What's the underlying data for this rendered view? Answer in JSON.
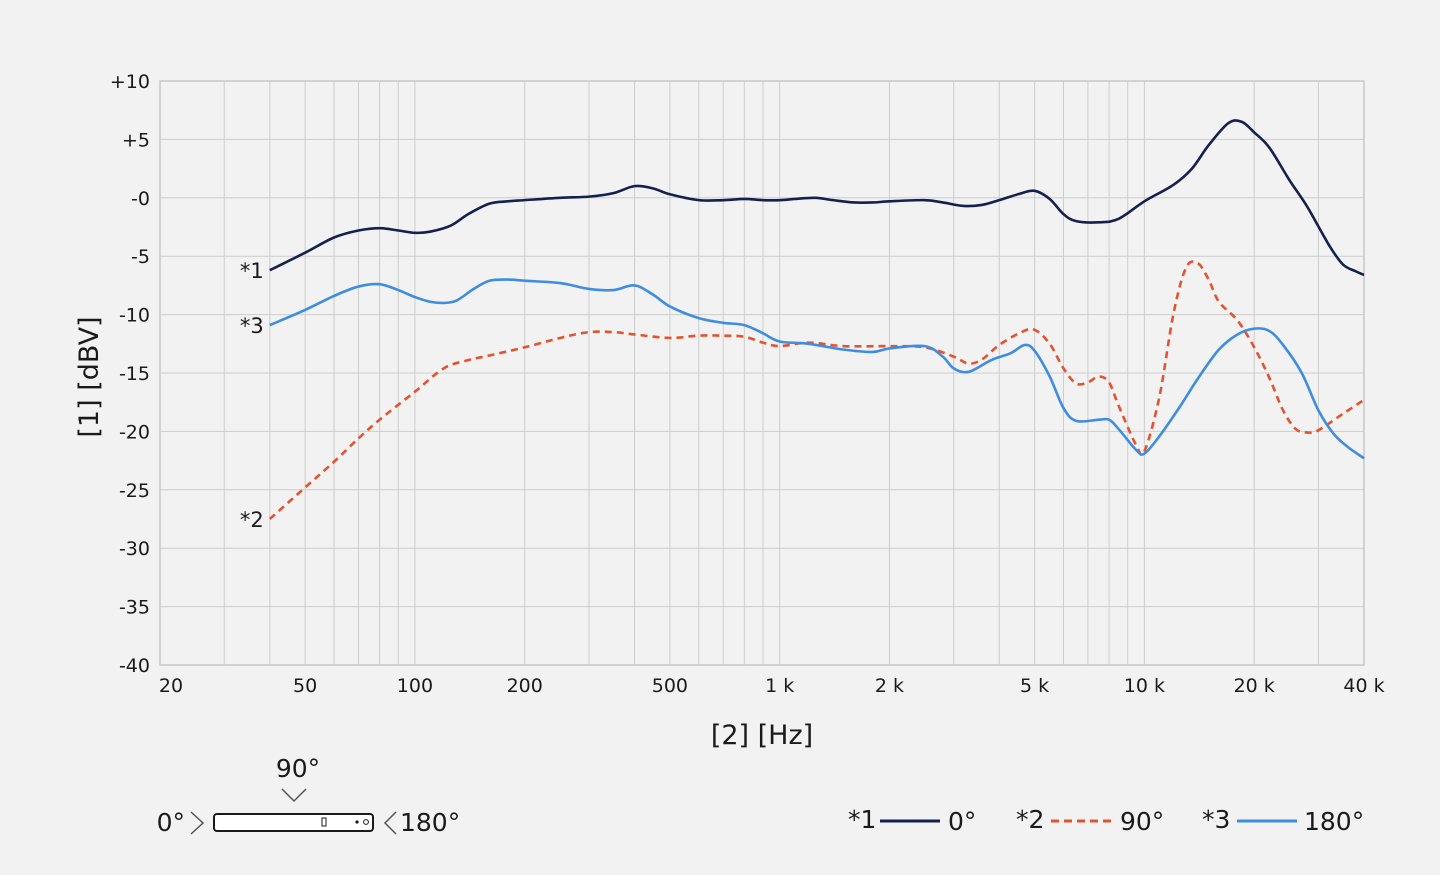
{
  "chart_data": {
    "type": "line",
    "x_scale": "log",
    "ylabel": "[1]  [dBV]",
    "xlabel": "[2]  [Hz]",
    "xlim": [
      20,
      40000
    ],
    "ylim": [
      -40,
      10
    ],
    "grid": true,
    "x_tick_labels": [
      {
        "value": 20,
        "label": "20"
      },
      {
        "value": 50,
        "label": "50"
      },
      {
        "value": 100,
        "label": "100"
      },
      {
        "value": 200,
        "label": "200"
      },
      {
        "value": 500,
        "label": "500"
      },
      {
        "value": 1000,
        "label": "1 k"
      },
      {
        "value": 2000,
        "label": "2 k"
      },
      {
        "value": 5000,
        "label": "5 k"
      },
      {
        "value": 10000,
        "label": "10 k"
      },
      {
        "value": 20000,
        "label": "20 k"
      },
      {
        "value": 40000,
        "label": "40 k"
      }
    ],
    "y_tick_labels": [
      {
        "value": 10,
        "label": "+10"
      },
      {
        "value": 5,
        "label": "+5"
      },
      {
        "value": 0,
        "label": "-0"
      },
      {
        "value": -5,
        "label": "-5"
      },
      {
        "value": -10,
        "label": "-10"
      },
      {
        "value": -15,
        "label": "-15"
      },
      {
        "value": -20,
        "label": "-20"
      },
      {
        "value": -25,
        "label": "-25"
      },
      {
        "value": -30,
        "label": "-30"
      },
      {
        "value": -35,
        "label": "-35"
      },
      {
        "value": -40,
        "label": "-40"
      }
    ],
    "series": [
      {
        "name": "0°",
        "tag": "*1",
        "color": "#14204f",
        "dash": "solid",
        "points": [
          [
            40,
            -6.2
          ],
          [
            50,
            -4.7
          ],
          [
            60,
            -3.4
          ],
          [
            70,
            -2.8
          ],
          [
            80,
            -2.6
          ],
          [
            90,
            -2.8
          ],
          [
            100,
            -3.0
          ],
          [
            110,
            -2.9
          ],
          [
            125,
            -2.4
          ],
          [
            140,
            -1.4
          ],
          [
            160,
            -0.5
          ],
          [
            180,
            -0.3
          ],
          [
            200,
            -0.2
          ],
          [
            250,
            0.0
          ],
          [
            300,
            0.1
          ],
          [
            350,
            0.4
          ],
          [
            400,
            1.0
          ],
          [
            450,
            0.8
          ],
          [
            500,
            0.3
          ],
          [
            600,
            -0.2
          ],
          [
            700,
            -0.2
          ],
          [
            800,
            -0.1
          ],
          [
            900,
            -0.2
          ],
          [
            1000,
            -0.2
          ],
          [
            1100,
            -0.1
          ],
          [
            1250,
            0.0
          ],
          [
            1400,
            -0.2
          ],
          [
            1600,
            -0.4
          ],
          [
            1800,
            -0.4
          ],
          [
            2000,
            -0.3
          ],
          [
            2500,
            -0.2
          ],
          [
            2800,
            -0.4
          ],
          [
            3200,
            -0.7
          ],
          [
            3600,
            -0.6
          ],
          [
            4000,
            -0.2
          ],
          [
            4500,
            0.3
          ],
          [
            5000,
            0.6
          ],
          [
            5500,
            -0.1
          ],
          [
            6000,
            -1.4
          ],
          [
            6500,
            -2.0
          ],
          [
            7500,
            -2.1
          ],
          [
            8500,
            -1.8
          ],
          [
            10000,
            -0.3
          ],
          [
            12000,
            1.1
          ],
          [
            13500,
            2.5
          ],
          [
            15000,
            4.5
          ],
          [
            17000,
            6.4
          ],
          [
            18500,
            6.5
          ],
          [
            20000,
            5.6
          ],
          [
            22000,
            4.3
          ],
          [
            25000,
            1.5
          ],
          [
            28000,
            -0.8
          ],
          [
            32000,
            -4.0
          ],
          [
            35000,
            -5.7
          ],
          [
            38000,
            -6.3
          ],
          [
            40000,
            -6.6
          ]
        ]
      },
      {
        "name": "90°",
        "tag": "*2",
        "color": "#e5532e",
        "dash": "dashed",
        "points": [
          [
            40,
            -27.5
          ],
          [
            50,
            -24.8
          ],
          [
            60,
            -22.6
          ],
          [
            70,
            -20.6
          ],
          [
            80,
            -19.0
          ],
          [
            100,
            -16.6
          ],
          [
            120,
            -14.6
          ],
          [
            140,
            -13.9
          ],
          [
            160,
            -13.5
          ],
          [
            200,
            -12.8
          ],
          [
            250,
            -12.0
          ],
          [
            300,
            -11.5
          ],
          [
            350,
            -11.5
          ],
          [
            400,
            -11.7
          ],
          [
            500,
            -12.0
          ],
          [
            600,
            -11.8
          ],
          [
            700,
            -11.8
          ],
          [
            800,
            -11.9
          ],
          [
            900,
            -12.4
          ],
          [
            1000,
            -12.7
          ],
          [
            1200,
            -12.4
          ],
          [
            1500,
            -12.7
          ],
          [
            2000,
            -12.7
          ],
          [
            2500,
            -12.8
          ],
          [
            3000,
            -13.6
          ],
          [
            3300,
            -14.2
          ],
          [
            3600,
            -13.8
          ],
          [
            4000,
            -12.6
          ],
          [
            4600,
            -11.5
          ],
          [
            5000,
            -11.3
          ],
          [
            5500,
            -12.5
          ],
          [
            6000,
            -14.6
          ],
          [
            6500,
            -15.9
          ],
          [
            7000,
            -15.8
          ],
          [
            7500,
            -15.3
          ],
          [
            8000,
            -15.8
          ],
          [
            8500,
            -17.8
          ],
          [
            9500,
            -21.2
          ],
          [
            10000,
            -21.7
          ],
          [
            11000,
            -17.0
          ],
          [
            12000,
            -10.0
          ],
          [
            13000,
            -6.0
          ],
          [
            14000,
            -5.6
          ],
          [
            15000,
            -7.0
          ],
          [
            16000,
            -8.9
          ],
          [
            18000,
            -10.5
          ],
          [
            20000,
            -12.8
          ],
          [
            22000,
            -15.4
          ],
          [
            24000,
            -18.2
          ],
          [
            26000,
            -19.8
          ],
          [
            28000,
            -20.1
          ],
          [
            30000,
            -19.9
          ],
          [
            35000,
            -18.5
          ],
          [
            40000,
            -17.3
          ]
        ]
      },
      {
        "name": "180°",
        "tag": "*3",
        "color": "#3f8de0",
        "dash": "solid",
        "points": [
          [
            40,
            -10.9
          ],
          [
            50,
            -9.6
          ],
          [
            60,
            -8.4
          ],
          [
            70,
            -7.6
          ],
          [
            80,
            -7.4
          ],
          [
            90,
            -7.9
          ],
          [
            100,
            -8.5
          ],
          [
            110,
            -8.9
          ],
          [
            120,
            -9.0
          ],
          [
            130,
            -8.8
          ],
          [
            145,
            -7.8
          ],
          [
            160,
            -7.1
          ],
          [
            180,
            -7.0
          ],
          [
            200,
            -7.1
          ],
          [
            250,
            -7.3
          ],
          [
            300,
            -7.8
          ],
          [
            350,
            -7.9
          ],
          [
            400,
            -7.5
          ],
          [
            450,
            -8.3
          ],
          [
            500,
            -9.3
          ],
          [
            600,
            -10.3
          ],
          [
            700,
            -10.7
          ],
          [
            800,
            -10.9
          ],
          [
            900,
            -11.6
          ],
          [
            1000,
            -12.3
          ],
          [
            1200,
            -12.5
          ],
          [
            1500,
            -13.0
          ],
          [
            1800,
            -13.2
          ],
          [
            2000,
            -12.9
          ],
          [
            2500,
            -12.7
          ],
          [
            2800,
            -13.6
          ],
          [
            3000,
            -14.6
          ],
          [
            3300,
            -14.9
          ],
          [
            3800,
            -13.9
          ],
          [
            4300,
            -13.3
          ],
          [
            4700,
            -12.6
          ],
          [
            5000,
            -13.1
          ],
          [
            5500,
            -15.3
          ],
          [
            6000,
            -18.0
          ],
          [
            6500,
            -19.1
          ],
          [
            7500,
            -19.0
          ],
          [
            8000,
            -19.0
          ],
          [
            8500,
            -19.8
          ],
          [
            9500,
            -21.6
          ],
          [
            10000,
            -21.9
          ],
          [
            11000,
            -20.4
          ],
          [
            12500,
            -17.9
          ],
          [
            14000,
            -15.5
          ],
          [
            16000,
            -13.0
          ],
          [
            18000,
            -11.7
          ],
          [
            20000,
            -11.2
          ],
          [
            22000,
            -11.4
          ],
          [
            24000,
            -12.6
          ],
          [
            27000,
            -15.0
          ],
          [
            30000,
            -18.2
          ],
          [
            33000,
            -20.2
          ],
          [
            36000,
            -21.3
          ],
          [
            40000,
            -22.3
          ]
        ]
      }
    ]
  },
  "diagram": {
    "label_90": "90°",
    "label_0": "0°",
    "label_180": "180°"
  },
  "legend": [
    {
      "tag": "*1",
      "label": "0°"
    },
    {
      "tag": "*2",
      "label": "90°"
    },
    {
      "tag": "*3",
      "label": "180°"
    }
  ]
}
